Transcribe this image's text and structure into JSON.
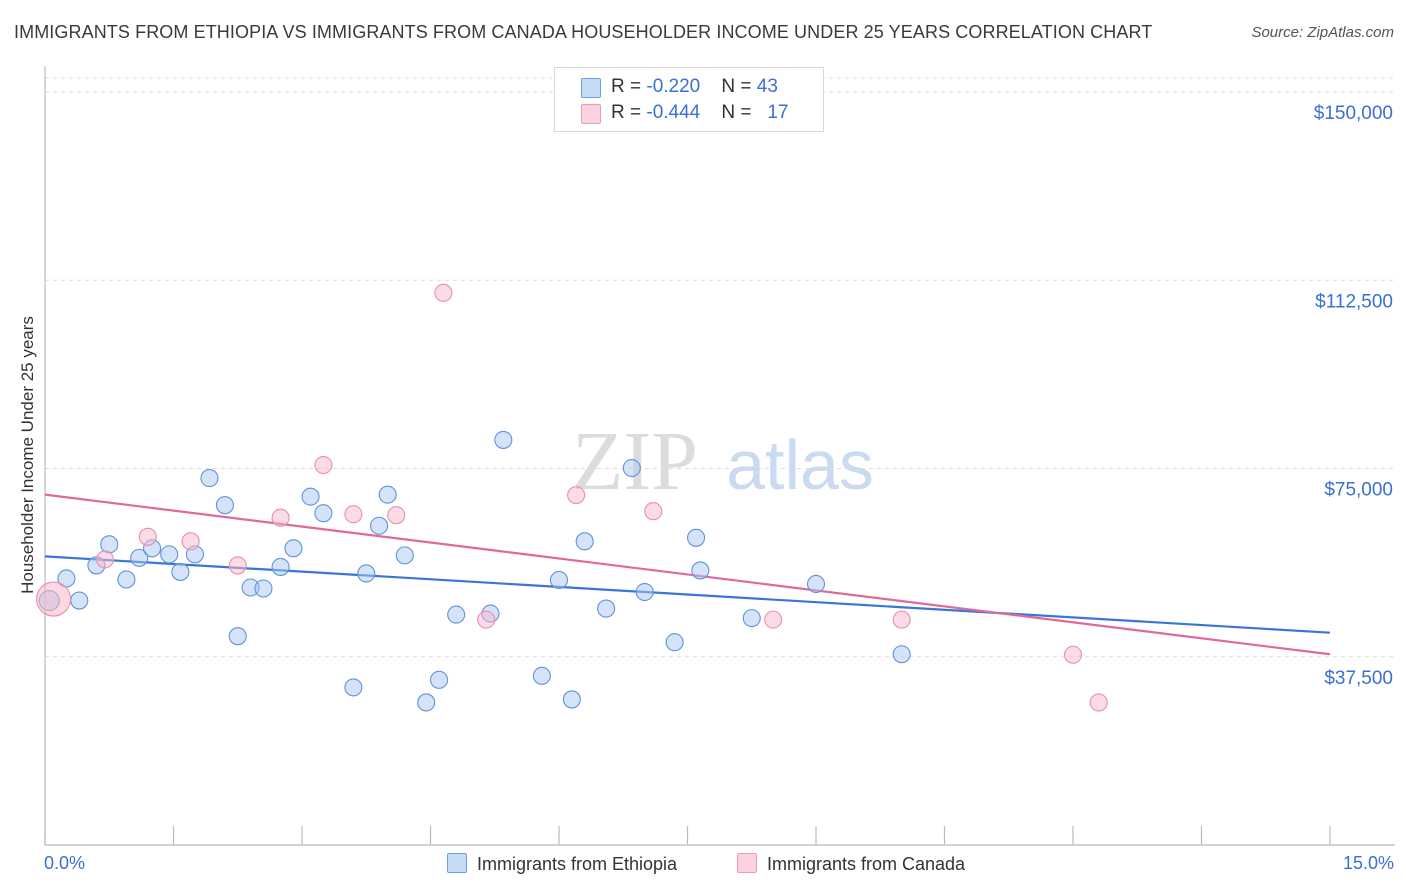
{
  "title": "IMMIGRANTS FROM ETHIOPIA VS IMMIGRANTS FROM CANADA HOUSEHOLDER INCOME UNDER 25 YEARS CORRELATION CHART",
  "source": "Source: ZipAtlas.com",
  "watermark": {
    "zip": "ZIP",
    "atlas": "atlas"
  },
  "stats_legend": {
    "rows": [
      {
        "r_label": "R = ",
        "r_value": "-0.220",
        "n_label": "N = ",
        "n_value": "43",
        "color": "#a9c8f2"
      },
      {
        "r_label": "R = ",
        "r_value": "-0.444",
        "n_label": "N = ",
        "n_value": "17",
        "color": "#f7b8cb"
      }
    ]
  },
  "bottom_legend": [
    {
      "label": "Immigrants from Ethiopia",
      "color": "#a9c8f2"
    },
    {
      "label": "Immigrants from Canada",
      "color": "#f7b8cb"
    }
  ],
  "chart_data": {
    "type": "scatter",
    "title": "IMMIGRANTS FROM ETHIOPIA VS IMMIGRANTS FROM CANADA HOUSEHOLDER INCOME UNDER 25 YEARS CORRELATION CHART",
    "xlabel": "",
    "ylabel": "Householder Income Under 25 years",
    "x_tick_labels": [
      "0.0%",
      "15.0%"
    ],
    "y_tick_labels": [
      "$150,000",
      "$112,500",
      "$75,000",
      "$37,500"
    ],
    "xlim": [
      0,
      15
    ],
    "ylim": [
      0,
      154000
    ],
    "y_ticks": [
      150000,
      112500,
      75000,
      37500
    ],
    "grid": true,
    "legend_position": "top-center",
    "colors": {
      "ethiopia": "#3b7dd8",
      "canada": "#e0689a"
    },
    "series": [
      {
        "name": "Immigrants from Ethiopia",
        "color": "#a9c8f2",
        "stroke": "#5d93dc",
        "points": [
          [
            0.05,
            48700
          ],
          [
            0.25,
            53100
          ],
          [
            0.4,
            48700
          ],
          [
            0.6,
            55700
          ],
          [
            0.75,
            59900
          ],
          [
            0.95,
            52900
          ],
          [
            1.1,
            57200
          ],
          [
            1.25,
            59100
          ],
          [
            1.45,
            57900
          ],
          [
            1.58,
            54400
          ],
          [
            1.75,
            57900
          ],
          [
            1.92,
            73100
          ],
          [
            2.1,
            67700
          ],
          [
            2.25,
            41600
          ],
          [
            2.4,
            51300
          ],
          [
            2.55,
            51100
          ],
          [
            2.75,
            55400
          ],
          [
            2.9,
            59100
          ],
          [
            3.1,
            69400
          ],
          [
            3.25,
            66100
          ],
          [
            3.6,
            31400
          ],
          [
            3.75,
            54100
          ],
          [
            3.9,
            63600
          ],
          [
            4.0,
            69800
          ],
          [
            4.2,
            57700
          ],
          [
            4.45,
            28400
          ],
          [
            4.6,
            32900
          ],
          [
            4.8,
            45900
          ],
          [
            5.2,
            46100
          ],
          [
            5.35,
            80700
          ],
          [
            5.8,
            33700
          ],
          [
            6.0,
            52800
          ],
          [
            6.15,
            29000
          ],
          [
            6.3,
            60500
          ],
          [
            6.55,
            47100
          ],
          [
            6.85,
            75100
          ],
          [
            7.0,
            50400
          ],
          [
            7.35,
            40400
          ],
          [
            7.6,
            61200
          ],
          [
            7.65,
            54700
          ],
          [
            8.25,
            45200
          ],
          [
            9.0,
            52000
          ],
          [
            10.0,
            38000
          ]
        ]
      },
      {
        "name": "Immigrants from Canada",
        "color": "#f7b8cb",
        "stroke": "#e88fae",
        "points": [
          [
            0.1,
            49000
          ],
          [
            0.7,
            56900
          ],
          [
            1.2,
            61400
          ],
          [
            1.7,
            60500
          ],
          [
            2.25,
            55700
          ],
          [
            2.75,
            65200
          ],
          [
            3.25,
            75700
          ],
          [
            3.6,
            65900
          ],
          [
            4.1,
            65700
          ],
          [
            4.65,
            110000
          ],
          [
            5.15,
            44900
          ],
          [
            6.2,
            69700
          ],
          [
            7.1,
            66500
          ],
          [
            8.5,
            44900
          ],
          [
            10.0,
            44900
          ],
          [
            12.0,
            37900
          ],
          [
            12.3,
            28400
          ]
        ]
      }
    ],
    "trendlines": [
      {
        "series": "Immigrants from Ethiopia",
        "x": [
          0,
          15
        ],
        "y": [
          57500,
          42300
        ]
      },
      {
        "series": "Immigrants from Canada",
        "x": [
          0,
          15
        ],
        "y": [
          69800,
          38000
        ]
      }
    ]
  }
}
